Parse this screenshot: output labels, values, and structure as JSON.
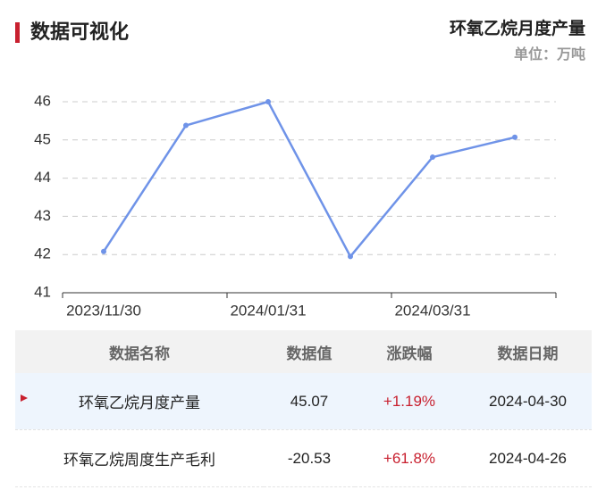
{
  "header": {
    "title": "数据可视化"
  },
  "chart_data": {
    "type": "line",
    "title": "环氧乙烷月度产量",
    "subtitle": "单位：万吨",
    "categories": [
      "2023/11/30",
      null,
      "2024/01/31",
      null,
      "2024/03/31",
      null
    ],
    "values": [
      42.08,
      45.38,
      46.0,
      41.95,
      44.55,
      45.07
    ],
    "color": "#6f93e8",
    "ylim": [
      41,
      46
    ],
    "yticks": [
      41,
      42,
      43,
      44,
      45,
      46
    ],
    "grid": true
  },
  "table": {
    "columns": [
      "数据名称",
      "数据值",
      "涨跌幅",
      "数据日期"
    ],
    "rows": [
      [
        "环氧乙烷月度产量",
        "45.07",
        "+1.19%",
        "2024-04-30"
      ],
      [
        "环氧乙烷周度生产毛利",
        "-20.53",
        "+61.8%",
        "2024-04-26"
      ]
    ]
  }
}
